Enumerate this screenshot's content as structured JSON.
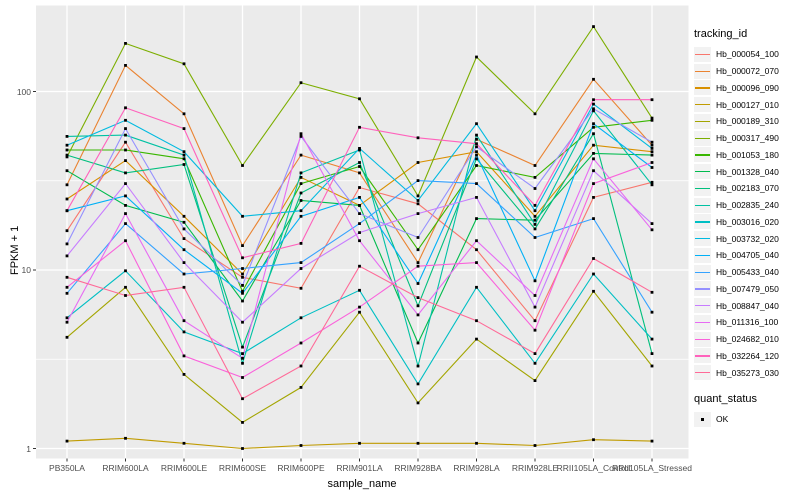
{
  "figure": {
    "background": "#FFFFFF",
    "panel_background": "#EBEBEB",
    "grid_color": "#FFFFFF",
    "tick_color": "#333333",
    "tick_label_color": "#4D4D4D",
    "point_color": "#000000"
  },
  "chart_data": {
    "type": "line",
    "title": "",
    "xlabel": "sample_name",
    "ylabel": "FPKM + 1",
    "y_scale": "log10",
    "y_ticks": [
      "1",
      "10",
      "100"
    ],
    "y_minor_ticks": [
      3.1623,
      31.623
    ],
    "ylim": [
      0.88,
      300
    ],
    "grid": true,
    "legend_position": "right",
    "point_shape": "square",
    "categories": [
      "PB350LA",
      "RRIM600LA",
      "RRIM600LE",
      "RRIM600SE",
      "RRIM600PE",
      "RRIM901LA",
      "RRIM928BA",
      "RRIM928LA",
      "RRIM928LE",
      "RRII105LA_Control",
      "RRII105LA_Stressed"
    ],
    "series": [
      {
        "name": "Hb_000054_100",
        "color": "#F8766D",
        "values": [
          16.6,
          52,
          15,
          9.1,
          7.9,
          29,
          23.5,
          13,
          5.2,
          25.5,
          31
        ]
      },
      {
        "name": "Hb_000072_070",
        "color": "#EA8331",
        "values": [
          30,
          140,
          75,
          13.7,
          44,
          35,
          11,
          54,
          38.5,
          117,
          50
        ]
      },
      {
        "name": "Hb_000096_090",
        "color": "#D89000",
        "values": [
          25,
          41,
          20,
          9.5,
          33,
          23,
          40,
          46,
          20,
          50,
          46
        ]
      },
      {
        "name": "Hb_000127_010",
        "color": "#C09B00",
        "values": [
          1.1,
          1.14,
          1.07,
          1.0,
          1.04,
          1.07,
          1.07,
          1.07,
          1.04,
          1.12,
          1.1
        ]
      },
      {
        "name": "Hb_000189_310",
        "color": "#A3A500",
        "values": [
          4.2,
          8.0,
          2.6,
          1.4,
          2.2,
          5.8,
          1.8,
          4.1,
          2.4,
          7.6,
          2.9
        ]
      },
      {
        "name": "Hb_000317_490",
        "color": "#7CAE00",
        "values": [
          43,
          186,
          143,
          38.5,
          112,
          91,
          26,
          156,
          75,
          231,
          71
        ]
      },
      {
        "name": "Hb_001053_180",
        "color": "#39B600",
        "values": [
          47,
          47,
          42,
          7.6,
          30.5,
          38,
          13,
          38.5,
          33,
          63,
          69
        ]
      },
      {
        "name": "Hb_001328_040",
        "color": "#00BB4E",
        "values": [
          36,
          23,
          18.5,
          6.7,
          24.5,
          23,
          3.9,
          19.4,
          19,
          45,
          44
        ]
      },
      {
        "name": "Hb_002183_070",
        "color": "#00BF7D",
        "values": [
          44,
          35,
          39,
          3.7,
          27,
          40,
          6.3,
          42,
          17,
          58,
          3.4
        ]
      },
      {
        "name": "Hb_002835_240",
        "color": "#00C1A3",
        "values": [
          56,
          57,
          44,
          3.0,
          35,
          47,
          2.9,
          57,
          18,
          78,
          30
        ]
      },
      {
        "name": "Hb_003016_020",
        "color": "#00BFC4",
        "values": [
          5.4,
          9.9,
          4.5,
          3.4,
          5.4,
          7.7,
          2.3,
          8.0,
          3.0,
          9.5,
          4.1
        ]
      },
      {
        "name": "Hb_003732_020",
        "color": "#00BAE0",
        "values": [
          50,
          69,
          46,
          20,
          21.5,
          48,
          24.5,
          66,
          21.5,
          85,
          48
        ]
      },
      {
        "name": "Hb_004705_040",
        "color": "#00B0F6",
        "values": [
          21.5,
          26,
          13,
          7.4,
          20,
          25.5,
          8.4,
          44,
          8.7,
          66,
          37.5
        ]
      },
      {
        "name": "Hb_005433_040",
        "color": "#35A2FF",
        "values": [
          7.4,
          18.2,
          9.5,
          10.2,
          11,
          18.2,
          31.7,
          30.5,
          15.2,
          19.4,
          5.8
        ]
      },
      {
        "name": "Hb_007479_050",
        "color": "#9590FF",
        "values": [
          14,
          62,
          17,
          8.2,
          56,
          20.7,
          15.2,
          49,
          28.6,
          80,
          52
        ]
      },
      {
        "name": "Hb_008847_040",
        "color": "#C77CFF",
        "values": [
          12,
          30.5,
          11,
          5.1,
          10.2,
          16.2,
          20.7,
          25.5,
          6.2,
          36,
          18.2
        ]
      },
      {
        "name": "Hb_011316_100",
        "color": "#E76BF3",
        "values": [
          5.1,
          20.7,
          5.2,
          3.2,
          58,
          14.6,
          5.6,
          14.6,
          7.2,
          42,
          16.8
        ]
      },
      {
        "name": "Hb_024682_010",
        "color": "#FA62DB",
        "values": [
          8.0,
          14.6,
          3.3,
          2.5,
          3.9,
          6.2,
          10.5,
          11,
          4.6,
          30.5,
          40
        ]
      },
      {
        "name": "Hb_032264_120",
        "color": "#FF62BC",
        "values": [
          21.5,
          81,
          62,
          11.7,
          14.1,
          63,
          55,
          51,
          23,
          90,
          90
        ]
      },
      {
        "name": "Hb_035273_030",
        "color": "#FF6A98",
        "values": [
          9.1,
          7.2,
          8.0,
          1.9,
          2.9,
          10.5,
          7.0,
          5.2,
          3.4,
          11.6,
          7.5
        ]
      }
    ]
  },
  "legend": {
    "tracking_title": "tracking_id",
    "quant_title": "quant_status",
    "quant_items": [
      {
        "label": "OK"
      }
    ]
  }
}
